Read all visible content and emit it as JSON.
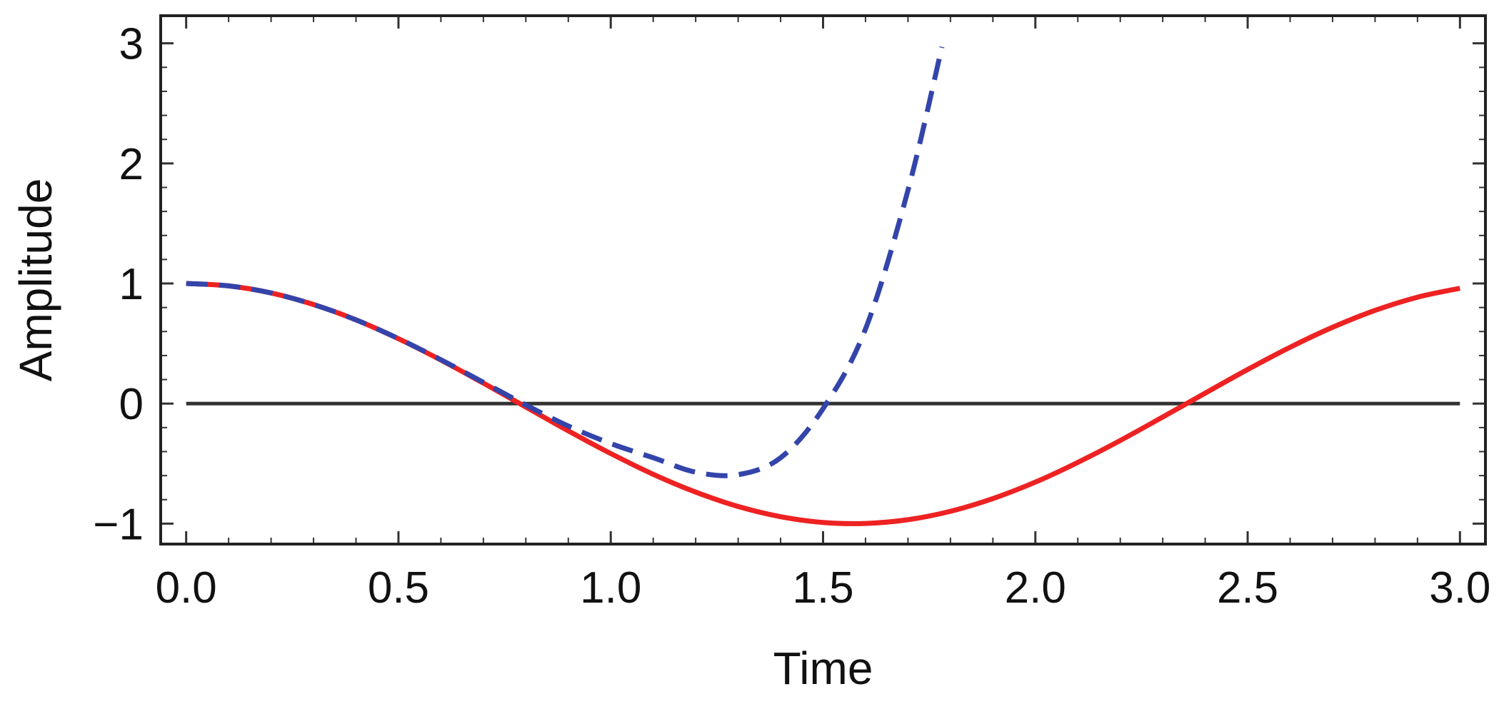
{
  "chart_data": {
    "type": "line",
    "title": "",
    "xlabel": "Time",
    "ylabel": "Amplitude",
    "xlim": [
      -0.06,
      3.06
    ],
    "ylim": [
      -1.17,
      3.23
    ],
    "x_ticks": [
      0.0,
      0.5,
      1.0,
      1.5,
      2.0,
      2.5,
      3.0
    ],
    "x_tick_labels": [
      "0.0",
      "0.5",
      "1.0",
      "1.5",
      "2.0",
      "2.5",
      "3.0"
    ],
    "y_ticks": [
      -1,
      0,
      1,
      2,
      3
    ],
    "y_tick_labels": [
      "−1",
      "0",
      "1",
      "2",
      "3"
    ],
    "grid": false,
    "legend": "none",
    "series": [
      {
        "color": "#ee2222",
        "dash": "solid",
        "x": [
          0.0,
          0.1,
          0.2,
          0.3,
          0.4,
          0.5,
          0.6,
          0.7,
          0.8,
          0.9,
          1.0,
          1.1,
          1.2,
          1.3,
          1.4,
          1.5,
          1.6,
          1.7,
          1.8,
          1.9,
          2.0,
          2.1,
          2.2,
          2.3,
          2.4,
          2.5,
          2.6,
          2.7,
          2.8,
          2.9,
          3.0
        ],
        "y": [
          1.0,
          0.98,
          0.921,
          0.825,
          0.697,
          0.54,
          0.362,
          0.17,
          -0.029,
          -0.227,
          -0.416,
          -0.589,
          -0.737,
          -0.857,
          -0.942,
          -0.99,
          -0.998,
          -0.967,
          -0.897,
          -0.791,
          -0.654,
          -0.49,
          -0.307,
          -0.112,
          0.087,
          0.284,
          0.469,
          0.635,
          0.776,
          0.886,
          0.96
        ]
      },
      {
        "color": "#3344aa",
        "dash": "dashed",
        "x": [
          0.0,
          0.1,
          0.2,
          0.3,
          0.4,
          0.5,
          0.6,
          0.7,
          0.8,
          0.9,
          1.0,
          1.1,
          1.2,
          1.3,
          1.4,
          1.5,
          1.6,
          1.7,
          1.78
        ],
        "y": [
          1.0,
          0.98,
          0.921,
          0.825,
          0.697,
          0.541,
          0.365,
          0.177,
          -0.012,
          -0.187,
          -0.333,
          -0.451,
          -0.571,
          -0.592,
          -0.451,
          -0.042,
          0.622,
          1.776,
          2.97
        ]
      },
      {
        "color": "#333333",
        "dash": "solid",
        "x": [
          0.0,
          3.0
        ],
        "y": [
          0,
          0
        ]
      }
    ]
  }
}
